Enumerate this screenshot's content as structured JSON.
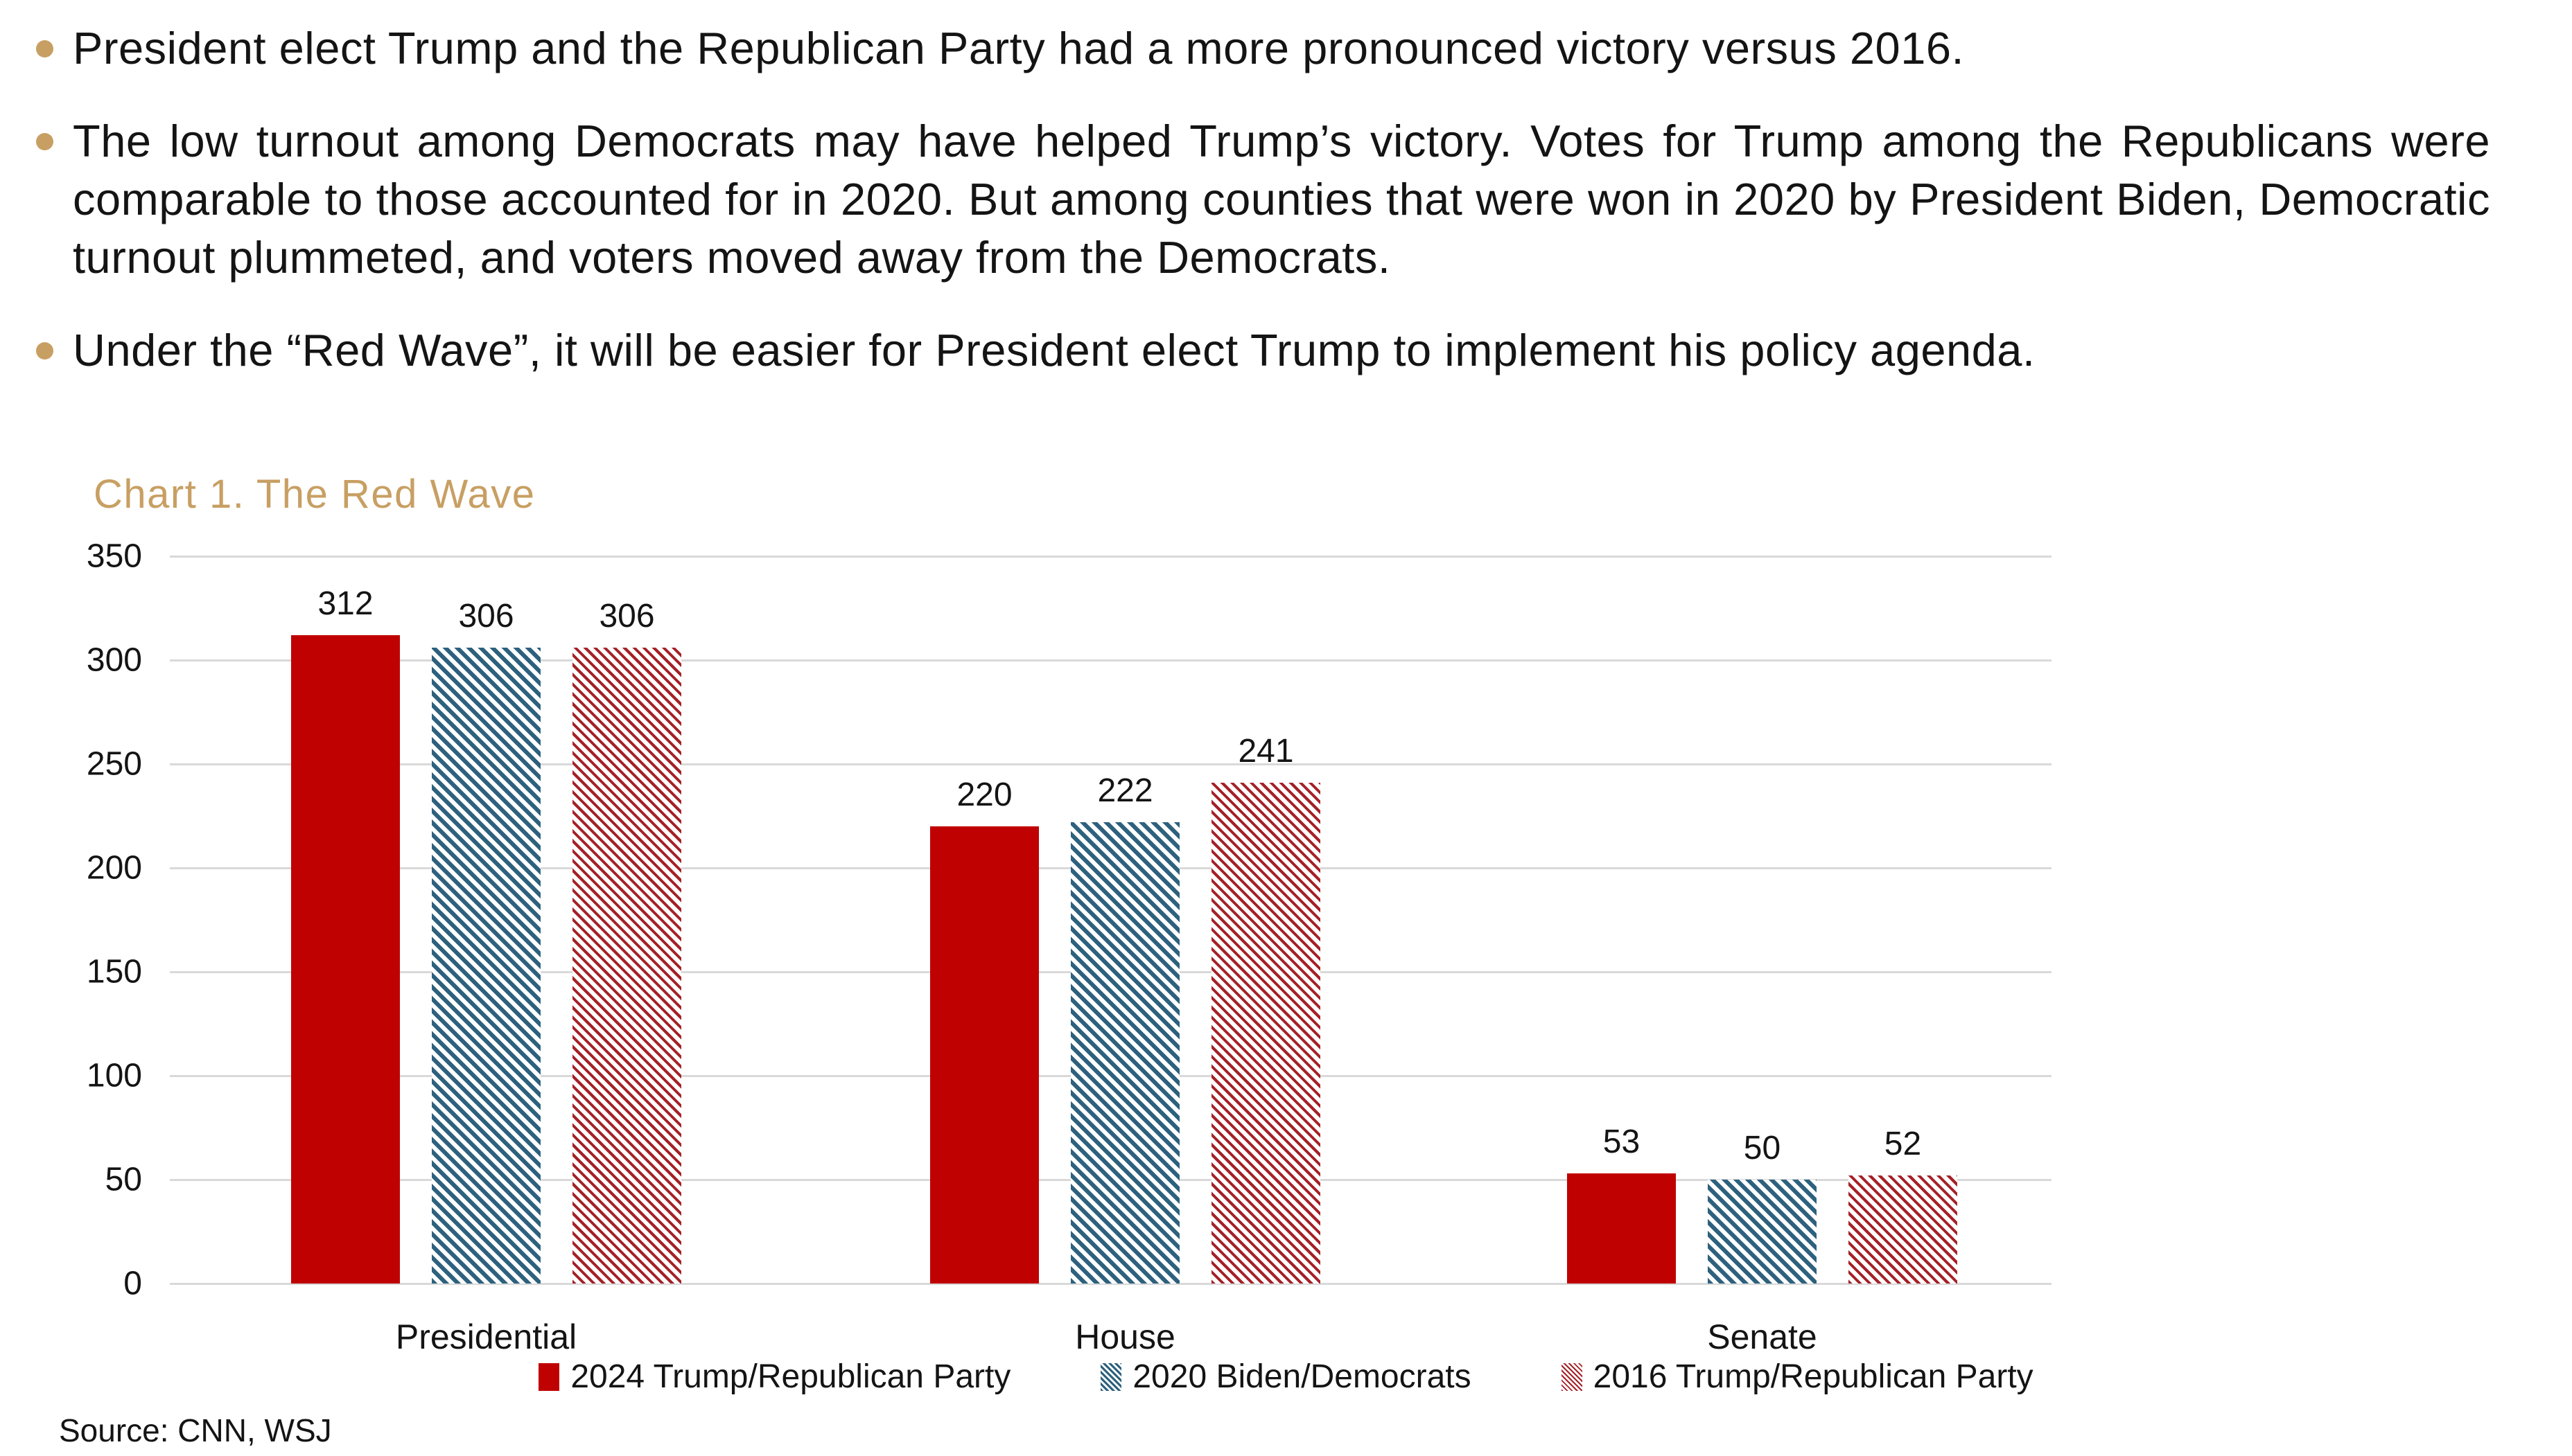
{
  "page": {
    "background": "#ffffff",
    "text_color": "#141414"
  },
  "bullets": {
    "marker_color": "#C89F63",
    "items": [
      {
        "text": "President elect Trump and the Republican Party had a more pronounced victory versus 2016.",
        "justify": false
      },
      {
        "text": "The low turnout among Democrats may have helped Trump’s victory. Votes for Trump among the Republicans were comparable to those accounted for in 2020. But among counties that were won in 2020 by President Biden, Democratic turnout plummeted, and voters moved away from the Democrats.",
        "justify": true
      },
      {
        "text": "Under the “Red Wave”, it will be easier for President elect Trump to implement his policy agenda.",
        "justify": false
      }
    ]
  },
  "chart": {
    "title": "Chart 1. The Red Wave",
    "title_color": "#C89F63",
    "source": "Source: CNN, WSJ"
  },
  "chart_data": {
    "type": "bar",
    "title": "Chart 1. The Red Wave",
    "categories": [
      "Presidential",
      "House",
      "Senate"
    ],
    "series": [
      {
        "name": "2024 Trump/Republican Party",
        "values": [
          312,
          220,
          53
        ],
        "color": "#C00101",
        "pattern": "solid"
      },
      {
        "name": "2020 Biden/Democrats",
        "values": [
          306,
          222,
          50
        ],
        "color": "#2D617E",
        "pattern": "hatch"
      },
      {
        "name": "2016 Trump/Republican Party",
        "values": [
          306,
          241,
          52
        ],
        "color": "#A42127",
        "pattern": "hatch-thin"
      }
    ],
    "ylim": [
      0,
      350
    ],
    "ytick_step": 50,
    "yticks": [
      0,
      50,
      100,
      150,
      200,
      250,
      300,
      350
    ],
    "grid": true,
    "gridline_color": "#D9D9D9",
    "legend_position": "bottom",
    "data_labels": true,
    "source": "Source: CNN, WSJ"
  }
}
